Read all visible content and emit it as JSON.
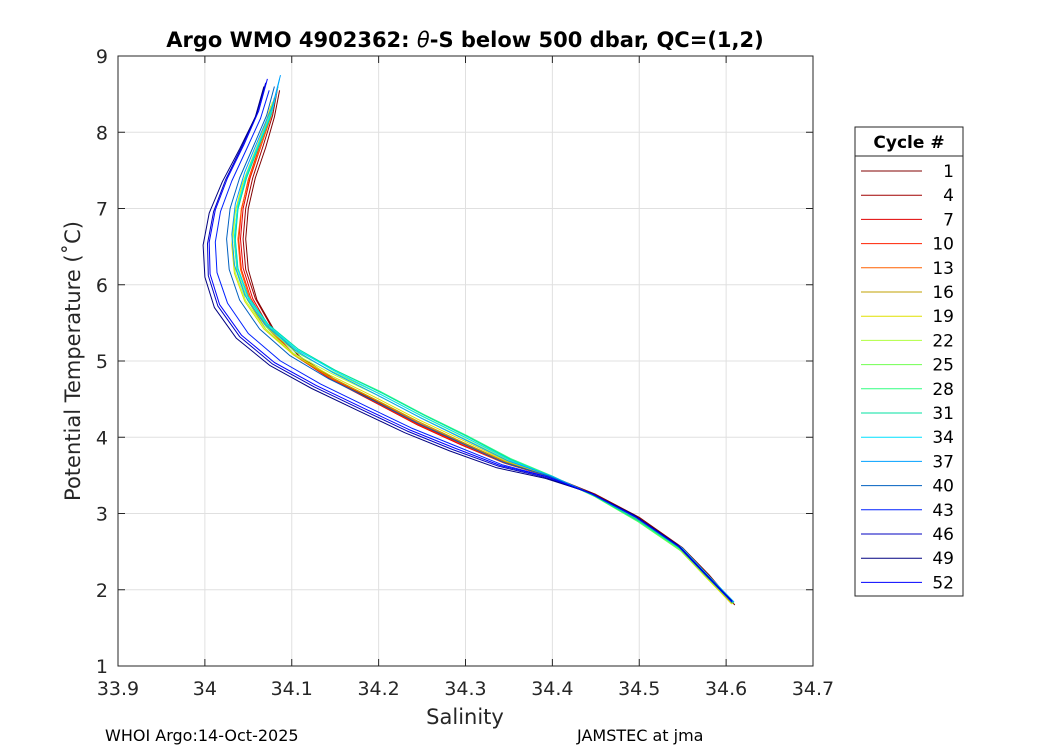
{
  "chart_data": {
    "type": "line",
    "title_prefix": "Argo WMO 4902362: ",
    "title_theta": "θ",
    "title_suffix": "-S below 500 dbar,  QC=(1,2)",
    "xlabel": "Salinity",
    "ylabel": "Potential Temperature (˚C)",
    "xlim": [
      33.9,
      34.7
    ],
    "ylim": [
      1,
      9
    ],
    "xticks": [
      "33.9",
      "34",
      "34.1",
      "34.2",
      "34.3",
      "34.4",
      "34.5",
      "34.6",
      "34.7"
    ],
    "yticks": [
      "1",
      "2",
      "3",
      "4",
      "5",
      "6",
      "7",
      "8",
      "9"
    ],
    "grid": true,
    "legend_title": "Cycle #",
    "legend_position": "right",
    "series": [
      {
        "name": "1",
        "color": "#800000",
        "x": [
          34.086,
          34.08,
          34.07,
          34.058,
          34.05,
          34.047,
          34.05,
          34.06,
          34.08,
          34.11,
          34.15,
          34.2,
          34.25,
          34.3,
          34.35,
          34.4,
          34.45,
          34.5,
          34.55,
          34.58,
          34.61
        ],
        "y": [
          8.55,
          8.2,
          7.8,
          7.4,
          7.0,
          6.6,
          6.2,
          5.8,
          5.4,
          5.05,
          4.75,
          4.45,
          4.15,
          3.9,
          3.65,
          3.48,
          3.25,
          2.95,
          2.55,
          2.2,
          1.8
        ]
      },
      {
        "name": "4",
        "color": "#a00000",
        "x": [
          34.084,
          34.078,
          34.067,
          34.055,
          34.047,
          34.044,
          34.047,
          34.058,
          34.078,
          34.108,
          34.148,
          34.198,
          34.248,
          34.298,
          34.348,
          34.398,
          34.448,
          34.498,
          34.548,
          34.578,
          34.608
        ],
        "y": [
          8.6,
          8.22,
          7.82,
          7.4,
          7.0,
          6.6,
          6.2,
          5.82,
          5.42,
          5.07,
          4.77,
          4.47,
          4.16,
          3.91,
          3.66,
          3.48,
          3.25,
          2.95,
          2.56,
          2.2,
          1.82
        ]
      },
      {
        "name": "7",
        "color": "#e00000",
        "x": [
          34.082,
          34.075,
          34.064,
          34.052,
          34.044,
          34.041,
          34.044,
          34.055,
          34.075,
          34.105,
          34.145,
          34.195,
          34.245,
          34.295,
          34.345,
          34.395,
          34.445,
          34.495,
          34.545,
          34.575,
          34.606
        ],
        "y": [
          8.5,
          8.18,
          7.8,
          7.4,
          7.0,
          6.6,
          6.22,
          5.82,
          5.42,
          5.06,
          4.76,
          4.46,
          4.16,
          3.9,
          3.66,
          3.49,
          3.26,
          2.96,
          2.57,
          2.22,
          1.84
        ]
      },
      {
        "name": "10",
        "color": "#ff2000",
        "x": [
          34.08,
          34.073,
          34.062,
          34.05,
          34.042,
          34.039,
          34.042,
          34.053,
          34.073,
          34.103,
          34.143,
          34.193,
          34.243,
          34.293,
          34.343,
          34.393,
          34.443,
          34.493,
          34.543,
          34.573,
          34.605
        ],
        "y": [
          8.45,
          8.15,
          7.78,
          7.38,
          6.98,
          6.58,
          6.2,
          5.82,
          5.44,
          5.08,
          4.78,
          4.48,
          4.18,
          3.92,
          3.67,
          3.49,
          3.27,
          2.97,
          2.58,
          2.22,
          1.85
        ]
      },
      {
        "name": "13",
        "color": "#ff6000",
        "x": [
          34.083,
          34.076,
          34.064,
          34.051,
          34.042,
          34.038,
          34.041,
          34.052,
          34.073,
          34.104,
          34.145,
          34.196,
          34.246,
          34.296,
          34.346,
          34.396,
          34.446,
          34.496,
          34.546,
          34.576,
          34.607
        ],
        "y": [
          8.55,
          8.2,
          7.8,
          7.4,
          7.0,
          6.6,
          6.2,
          5.8,
          5.42,
          5.07,
          4.78,
          4.49,
          4.19,
          3.93,
          3.67,
          3.48,
          3.25,
          2.94,
          2.55,
          2.19,
          1.83
        ]
      },
      {
        "name": "16",
        "color": "#c0a000",
        "x": [
          34.078,
          34.07,
          34.058,
          34.046,
          34.037,
          34.034,
          34.037,
          34.049,
          34.07,
          34.102,
          34.143,
          34.194,
          34.245,
          34.296,
          34.346,
          34.396,
          34.446,
          34.496,
          34.546,
          34.576,
          34.606
        ],
        "y": [
          8.4,
          8.1,
          7.75,
          7.35,
          6.95,
          6.55,
          6.18,
          5.8,
          5.42,
          5.08,
          4.8,
          4.51,
          4.21,
          3.94,
          3.68,
          3.49,
          3.25,
          2.93,
          2.53,
          2.18,
          1.82
        ]
      },
      {
        "name": "19",
        "color": "#e0e000",
        "x": [
          34.076,
          34.068,
          34.056,
          34.043,
          34.034,
          34.031,
          34.034,
          34.046,
          34.068,
          34.101,
          34.143,
          34.195,
          34.246,
          34.297,
          34.347,
          34.397,
          34.447,
          34.497,
          34.547,
          34.577,
          34.607
        ],
        "y": [
          8.35,
          8.05,
          7.7,
          7.32,
          6.92,
          6.52,
          6.15,
          5.78,
          5.42,
          5.09,
          4.82,
          4.53,
          4.23,
          3.96,
          3.69,
          3.49,
          3.24,
          2.92,
          2.52,
          2.16,
          1.81
        ]
      },
      {
        "name": "22",
        "color": "#b0ff40",
        "x": [
          34.078,
          34.07,
          34.057,
          34.044,
          34.035,
          34.032,
          34.035,
          34.047,
          34.069,
          34.102,
          34.145,
          34.197,
          34.248,
          34.299,
          34.349,
          34.398,
          34.448,
          34.498,
          34.548,
          34.578,
          34.608
        ],
        "y": [
          8.4,
          8.08,
          7.72,
          7.34,
          6.94,
          6.54,
          6.16,
          5.79,
          5.43,
          5.1,
          4.84,
          4.56,
          4.26,
          3.98,
          3.7,
          3.49,
          3.23,
          2.9,
          2.51,
          2.16,
          1.82
        ]
      },
      {
        "name": "25",
        "color": "#70ff50",
        "x": [
          34.08,
          34.072,
          34.059,
          34.046,
          34.037,
          34.034,
          34.037,
          34.049,
          34.071,
          34.104,
          34.147,
          34.199,
          34.25,
          34.3,
          34.35,
          34.399,
          34.449,
          34.499,
          34.549,
          34.579,
          34.608
        ],
        "y": [
          8.45,
          8.12,
          7.75,
          7.36,
          6.96,
          6.56,
          6.18,
          5.8,
          5.44,
          5.12,
          4.86,
          4.58,
          4.28,
          4.0,
          3.71,
          3.49,
          3.22,
          2.89,
          2.5,
          2.15,
          1.82
        ]
      },
      {
        "name": "28",
        "color": "#30ff80",
        "x": [
          34.082,
          34.074,
          34.061,
          34.047,
          34.038,
          34.035,
          34.038,
          34.05,
          34.072,
          34.106,
          34.15,
          34.202,
          34.252,
          34.302,
          34.352,
          34.4,
          34.45,
          34.5,
          34.55,
          34.58,
          34.609
        ],
        "y": [
          8.5,
          8.16,
          7.78,
          7.38,
          6.98,
          6.58,
          6.2,
          5.82,
          5.46,
          5.14,
          4.88,
          4.6,
          4.3,
          4.02,
          3.72,
          3.49,
          3.22,
          2.89,
          2.51,
          2.16,
          1.83
        ]
      },
      {
        "name": "31",
        "color": "#00e0a0",
        "x": [
          34.084,
          34.076,
          34.062,
          34.048,
          34.038,
          34.035,
          34.038,
          34.05,
          34.073,
          34.107,
          34.15,
          34.202,
          34.252,
          34.302,
          34.352,
          34.4,
          34.45,
          34.5,
          34.55,
          34.58,
          34.609
        ],
        "y": [
          8.6,
          8.22,
          7.82,
          7.4,
          7.0,
          6.6,
          6.22,
          5.84,
          5.48,
          5.16,
          4.88,
          4.59,
          4.29,
          4.01,
          3.71,
          3.48,
          3.22,
          2.9,
          2.52,
          2.17,
          1.84
        ]
      },
      {
        "name": "34",
        "color": "#00e0ff",
        "x": [
          34.086,
          34.078,
          34.063,
          34.048,
          34.038,
          34.034,
          34.037,
          34.049,
          34.072,
          34.106,
          34.149,
          34.201,
          34.251,
          34.301,
          34.351,
          34.4,
          34.45,
          34.5,
          34.55,
          34.58,
          34.609
        ],
        "y": [
          8.7,
          8.3,
          7.88,
          7.45,
          7.04,
          6.64,
          6.24,
          5.85,
          5.48,
          5.15,
          4.87,
          4.57,
          4.27,
          3.99,
          3.7,
          3.48,
          3.23,
          2.92,
          2.54,
          2.18,
          1.84
        ]
      },
      {
        "name": "37",
        "color": "#00a0ff",
        "x": [
          34.087,
          34.078,
          34.062,
          34.046,
          34.035,
          34.031,
          34.034,
          34.046,
          34.069,
          34.104,
          34.147,
          34.199,
          34.249,
          34.299,
          34.349,
          34.399,
          34.449,
          34.499,
          34.549,
          34.579,
          34.609
        ],
        "y": [
          8.75,
          8.35,
          7.92,
          7.48,
          7.06,
          6.66,
          6.26,
          5.86,
          5.48,
          5.14,
          4.85,
          4.55,
          4.25,
          3.97,
          3.69,
          3.49,
          3.24,
          2.93,
          2.55,
          2.19,
          1.84
        ]
      },
      {
        "name": "40",
        "color": "#0060c0",
        "x": [
          34.08,
          34.071,
          34.056,
          34.04,
          34.029,
          34.025,
          34.028,
          34.04,
          34.063,
          34.098,
          34.142,
          34.194,
          34.244,
          34.294,
          34.344,
          34.396,
          34.446,
          34.496,
          34.546,
          34.576,
          34.607
        ],
        "y": [
          8.6,
          8.22,
          7.82,
          7.4,
          7.0,
          6.6,
          6.2,
          5.8,
          5.42,
          5.07,
          4.77,
          4.48,
          4.19,
          3.93,
          3.67,
          3.49,
          3.25,
          2.95,
          2.56,
          2.2,
          1.83
        ]
      },
      {
        "name": "43",
        "color": "#0020ff",
        "x": [
          34.074,
          34.064,
          34.048,
          34.031,
          34.018,
          34.012,
          34.014,
          34.026,
          34.05,
          34.087,
          34.133,
          34.187,
          34.238,
          34.29,
          34.342,
          34.395,
          34.446,
          34.496,
          34.546,
          34.576,
          34.607
        ],
        "y": [
          8.55,
          8.18,
          7.78,
          7.36,
          6.96,
          6.56,
          6.16,
          5.76,
          5.36,
          5.0,
          4.7,
          4.4,
          4.12,
          3.88,
          3.64,
          3.48,
          3.26,
          2.96,
          2.57,
          2.21,
          1.84
        ]
      },
      {
        "name": "46",
        "color": "#0000c0",
        "x": [
          34.07,
          34.06,
          34.043,
          34.024,
          34.01,
          34.003,
          34.004,
          34.015,
          34.04,
          34.078,
          34.126,
          34.181,
          34.233,
          34.285,
          34.338,
          34.393,
          34.445,
          34.495,
          34.545,
          34.575,
          34.607
        ],
        "y": [
          8.65,
          8.25,
          7.82,
          7.38,
          6.96,
          6.54,
          6.12,
          5.72,
          5.32,
          4.96,
          4.66,
          4.36,
          4.08,
          3.84,
          3.62,
          3.47,
          3.26,
          2.97,
          2.58,
          2.22,
          1.85
        ]
      },
      {
        "name": "49",
        "color": "#000080",
        "x": [
          34.068,
          34.058,
          34.04,
          34.02,
          34.005,
          33.998,
          34.0,
          34.011,
          34.036,
          34.075,
          34.123,
          34.178,
          34.23,
          34.282,
          34.336,
          34.392,
          34.444,
          34.494,
          34.544,
          34.574,
          34.606
        ],
        "y": [
          8.6,
          8.2,
          7.78,
          7.35,
          6.94,
          6.52,
          6.1,
          5.7,
          5.3,
          4.94,
          4.64,
          4.34,
          4.06,
          3.82,
          3.6,
          3.46,
          3.27,
          2.98,
          2.59,
          2.23,
          1.86
        ]
      },
      {
        "name": "52",
        "color": "#0000ff",
        "x": [
          34.072,
          34.062,
          34.045,
          34.026,
          34.012,
          34.005,
          34.006,
          34.017,
          34.042,
          34.08,
          34.128,
          34.183,
          34.235,
          34.287,
          34.34,
          34.394,
          34.445,
          34.495,
          34.545,
          34.575,
          34.607
        ],
        "y": [
          8.7,
          8.28,
          7.84,
          7.4,
          6.98,
          6.56,
          6.14,
          5.74,
          5.34,
          4.98,
          4.68,
          4.38,
          4.1,
          3.86,
          3.63,
          3.48,
          3.26,
          2.96,
          2.57,
          2.21,
          1.84
        ]
      }
    ]
  },
  "footer": {
    "left": "WHOI Argo:14-Oct-2025",
    "right": "JAMSTEC at jma"
  }
}
